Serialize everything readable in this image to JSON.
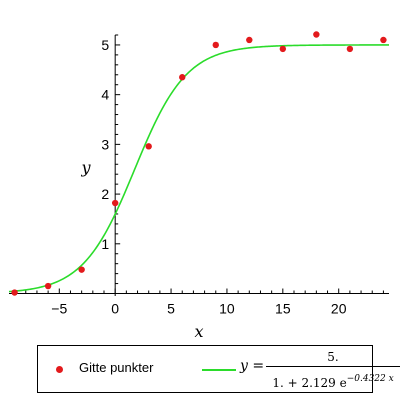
{
  "chart_data": {
    "type": "scatter",
    "xlabel": "x",
    "ylabel": "y",
    "xlim": [
      -9.5,
      24.5
    ],
    "ylim": [
      -0.05,
      5.2
    ],
    "x_ticks": [
      -5,
      0,
      5,
      10,
      15,
      20
    ],
    "y_ticks": [
      1,
      2,
      3,
      4,
      5
    ],
    "series": [
      {
        "name": "Gitte punkter",
        "kind": "points",
        "color": "#e31a1c",
        "x": [
          -9,
          -6,
          -3,
          0,
          3,
          6,
          9,
          12,
          15,
          18,
          21,
          24
        ],
        "y": [
          0.02,
          0.15,
          0.48,
          1.82,
          2.96,
          4.35,
          5.0,
          5.1,
          4.92,
          5.21,
          4.92,
          5.1
        ]
      },
      {
        "name": "y =",
        "kind": "curve",
        "color": "#2bdc2b",
        "model": {
          "a": 5.0,
          "b": 2.129,
          "k": 0.4322
        }
      }
    ],
    "legend": {
      "placement": "bottom",
      "points_label": "Gitte punkter",
      "curve_lhs": "y =",
      "numerator": "5.",
      "denominator": "1. + 2.129 e",
      "exponent": "−0.4322 x"
    }
  }
}
